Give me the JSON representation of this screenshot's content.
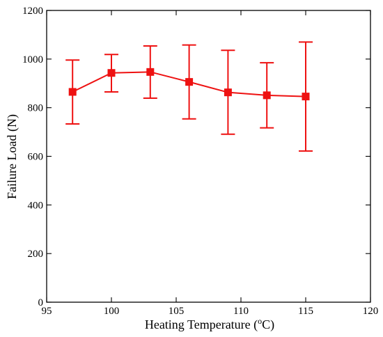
{
  "chart_data": {
    "type": "line",
    "title": "",
    "xlabel": "Heating Temperature (oC)",
    "xlabel_parts": {
      "before": "Heating Temperature (",
      "sup": "o",
      "after": "C)"
    },
    "ylabel": "Failure Load (N)",
    "xlim": [
      95,
      120
    ],
    "ylim": [
      0,
      1200
    ],
    "xticks": [
      95,
      100,
      105,
      110,
      115,
      120
    ],
    "yticks": [
      0,
      200,
      400,
      600,
      800,
      1000,
      1200
    ],
    "grid": false,
    "legend": "none",
    "color": "#ee1111",
    "series": [
      {
        "x": [
          97,
          100,
          103,
          106,
          109,
          112,
          115
        ],
        "y": [
          865,
          943,
          947,
          906,
          863,
          851,
          846
        ],
        "err_low": [
          733,
          865,
          839,
          754,
          691,
          717,
          622
        ],
        "err_high": [
          996,
          1019,
          1054,
          1058,
          1036,
          985,
          1070
        ]
      }
    ]
  }
}
